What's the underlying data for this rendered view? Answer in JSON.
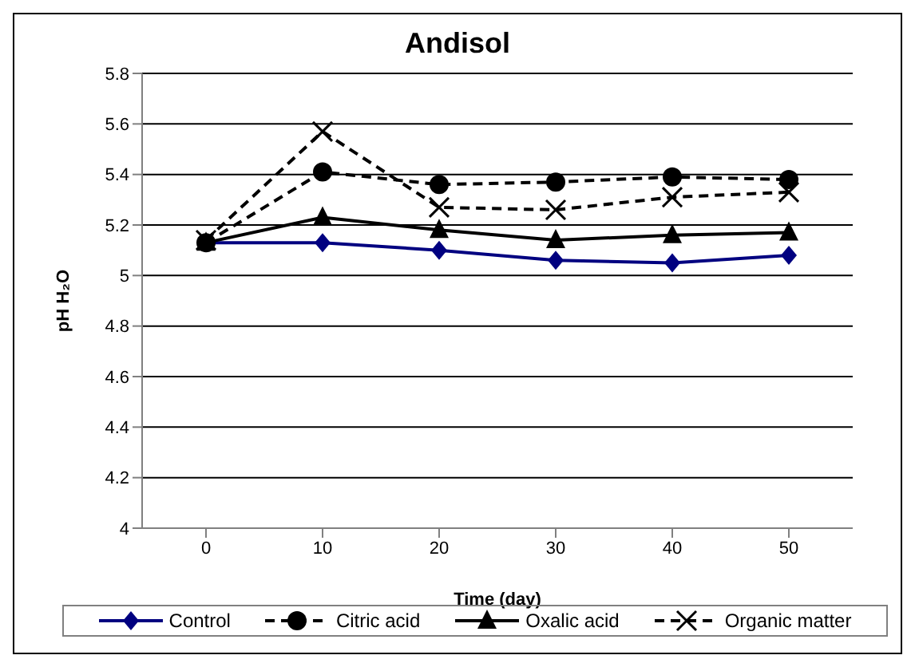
{
  "chart_data": {
    "type": "line",
    "title": "Andisol",
    "xlabel": "Time (day)",
    "ylabel": "pH H₂O",
    "categories": [
      "0",
      "10",
      "20",
      "30",
      "40",
      "50"
    ],
    "series": [
      {
        "name": "Control",
        "color": "#000080",
        "marker": "diamond",
        "line_style": "solid",
        "values": [
          5.13,
          5.13,
          5.1,
          5.06,
          5.05,
          5.08
        ]
      },
      {
        "name": "Citric acid",
        "color": "#000000",
        "marker": "circle",
        "line_style": "dashed",
        "values": [
          5.13,
          5.41,
          5.36,
          5.37,
          5.39,
          5.38
        ]
      },
      {
        "name": "Oxalic acid",
        "color": "#000000",
        "marker": "triangle",
        "line_style": "solid",
        "values": [
          5.13,
          5.23,
          5.18,
          5.14,
          5.16,
          5.17
        ]
      },
      {
        "name": "Organic matter",
        "color": "#000000",
        "marker": "cross",
        "line_style": "dashed",
        "values": [
          5.14,
          5.57,
          5.27,
          5.26,
          5.31,
          5.33
        ]
      }
    ],
    "ylim": [
      4,
      5.8
    ],
    "yticks": [
      4,
      4.2,
      4.4,
      4.6,
      4.8,
      5,
      5.2,
      5.4,
      5.6,
      5.8
    ],
    "grid": "y",
    "legend": "bottom"
  }
}
